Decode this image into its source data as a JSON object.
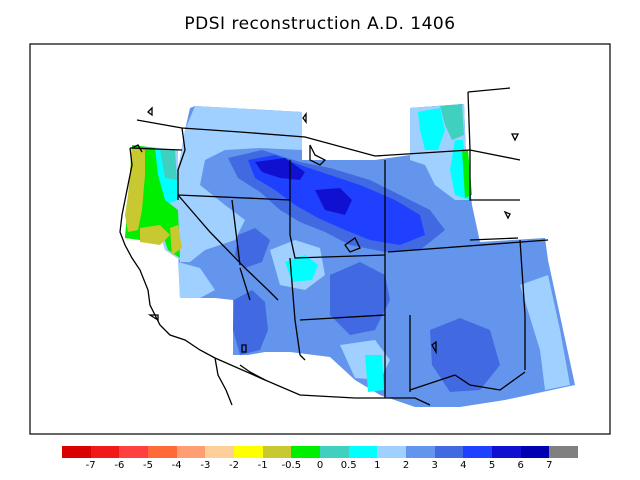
{
  "title": "PDSI reconstruction A.D. 1406",
  "colorbar": {
    "colors": [
      "#d90000",
      "#f01818",
      "#ff4040",
      "#ff6a38",
      "#ff9e70",
      "#ffcf9a",
      "#ffff00",
      "#c8c830",
      "#00ee00",
      "#40d0c0",
      "#00ffff",
      "#a0d0ff",
      "#6495ed",
      "#4169e1",
      "#2040ff",
      "#1010d0",
      "#0000b0",
      "#808080"
    ],
    "labels": [
      "-7",
      "-6",
      "-5",
      "-4",
      "-3",
      "-2",
      "-1",
      "-0.5",
      "0",
      "0.5",
      "1",
      "2",
      "3",
      "4",
      "5",
      "6",
      "7"
    ]
  },
  "map": {
    "region": "western United States",
    "base_color": "#6495ed"
  }
}
